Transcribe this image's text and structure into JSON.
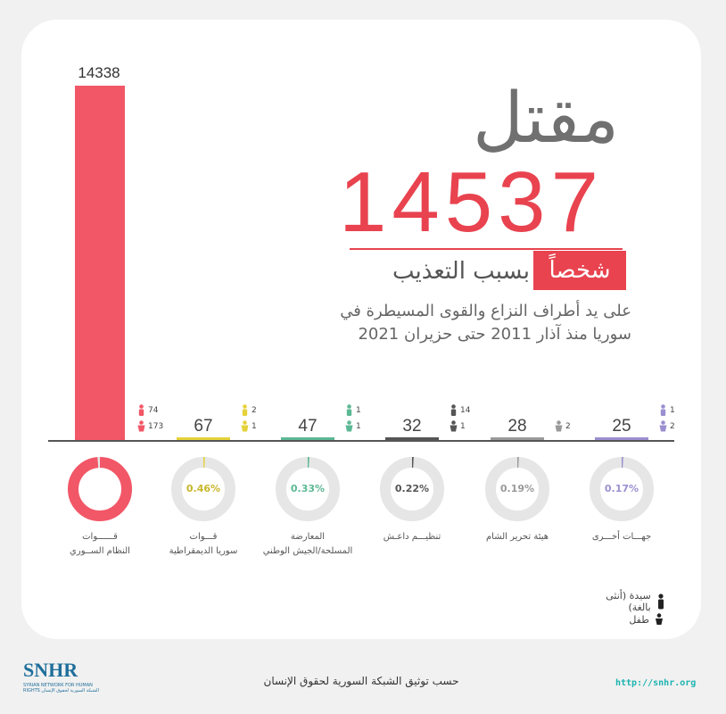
{
  "header": {
    "title_word": "مقتل",
    "total": "14537",
    "persons": "شخصاً",
    "cause": "بسبب التعذيب",
    "description_line1": "على يد أطراف النزاع والقوى المسيطرة في",
    "description_line2": "سوريا منذ آذار 2011 حتى حزيران 2021"
  },
  "chart_data": {
    "type": "bar",
    "categories": [
      "قوات النظام السوري",
      "قوات سوريا الديمقراطية",
      "المعارضة المسلحة/الجيش الوطني",
      "تنظيم داعش",
      "هيئة تحرير الشام",
      "جهات أخرى"
    ],
    "values": [
      14338,
      67,
      47,
      32,
      28,
      25
    ],
    "percentages": [
      "98.63%",
      "0.46%",
      "0.33%",
      "0.22%",
      "0.19%",
      "0.17%"
    ],
    "women": [
      74,
      2,
      1,
      14,
      null,
      1
    ],
    "children": [
      173,
      1,
      1,
      1,
      2,
      2
    ],
    "colors": [
      "#f25767",
      "#e5d23a",
      "#5cb894",
      "#555555",
      "#9a9a9a",
      "#9b8fd0"
    ],
    "ylim": [
      0,
      14338
    ]
  },
  "labels": [
    {
      "line1": "قــــــوات",
      "line2": "النظام الســوري"
    },
    {
      "line1": "قـــوات",
      "line2": "سوريا الديمقراطية"
    },
    {
      "line1": "المعارضة",
      "line2": "المسلحة/الجيش الوطني"
    },
    {
      "line1": "تنظيـــم داعـش",
      "line2": ""
    },
    {
      "line1": "هيئة تحرير الشام",
      "line2": ""
    },
    {
      "line1": "جهـــات أخـــرى",
      "line2": ""
    }
  ],
  "legend": {
    "woman": "سيدة (أنثى بالغة)",
    "child": "طفل"
  },
  "footer": {
    "source": "حسب توثيق الشبكة السورية لحقوق الإنسان",
    "url": "http://snhr.org",
    "logo": "SNHR",
    "logo_sub": "SYRIAN NETWORK FOR HUMAN RIGHTS الشبكة السورية لحقوق الإنسان"
  }
}
